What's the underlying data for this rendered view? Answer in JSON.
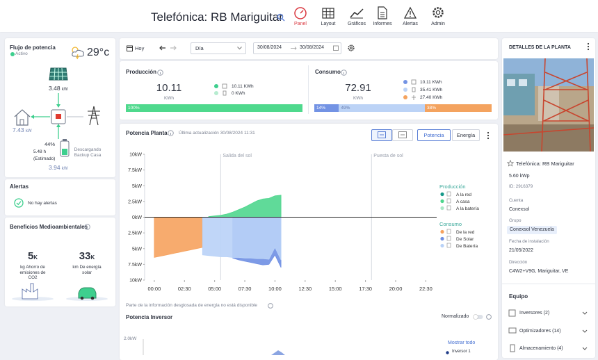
{
  "header": {
    "title": "Telefónica: RB Mariguitar",
    "nav": [
      "Panel",
      "Layout",
      "Gráficos",
      "Informes",
      "Alertas",
      "Admin"
    ]
  },
  "power_flow": {
    "title": "Flujo de potencia",
    "status": "Activo",
    "temperature": "29°c",
    "solar_power": "3.48",
    "solar_unit": "kW",
    "home_power": "7.43",
    "home_unit": "kW",
    "battery_percent": "44%",
    "battery_time": "5.48 h",
    "battery_time_note": "(Estimado)",
    "battery_status": "Descargando Backup Casa",
    "battery_power": "3.94",
    "battery_unit": "kW"
  },
  "alerts": {
    "title": "Alertas",
    "message": "No hay alertas"
  },
  "environment": {
    "title": "Beneficios Medioambientales",
    "items": [
      {
        "value": "5",
        "unit": "K",
        "label": "kg Ahorro de emisiones de CO2"
      },
      {
        "value": "33",
        "unit": "K",
        "label": "km De energía solar"
      }
    ]
  },
  "toolbar": {
    "today": "Hoy",
    "period": "Día",
    "date_from": "30/08/2024",
    "date_to": "30/08/2024"
  },
  "production": {
    "title": "Producción",
    "total": "10.11",
    "unit": "KWh",
    "items": [
      "10.11 KWh",
      "0 KWh"
    ],
    "bar": [
      {
        "value": 100,
        "label": "100%",
        "color": "#4fd98d"
      }
    ]
  },
  "consumption": {
    "title": "Consumo",
    "total": "72.91",
    "unit": "KWh",
    "items": [
      "10.11 KWh",
      "35.41 KWh",
      "27.40 KWh"
    ],
    "bar": [
      {
        "value": 14,
        "label": "14%",
        "color": "#7393e4"
      },
      {
        "value": 49,
        "label": "49%",
        "color": "#bcd3f6"
      },
      {
        "value": 38,
        "label": "38%",
        "color": "#f4a35f"
      }
    ]
  },
  "plant_chart": {
    "title": "Potencia Planta",
    "updated": "Última actualización 30/08/2024 11:31",
    "buttons": [
      "Potencia",
      "Energía"
    ],
    "note": "Parte de la información desglosada de energía no está disponible"
  },
  "chart_data": {
    "type": "area",
    "x": [
      0,
      0.5,
      1,
      1.5,
      2,
      2.5,
      3,
      3.5,
      4,
      4.5,
      5,
      5.5,
      6,
      6.5,
      7,
      7.5,
      8,
      8.5,
      9,
      9.5,
      10,
      10.5
    ],
    "xlim": [
      -0.8,
      23.4
    ],
    "xticks": [
      {
        "value": 0,
        "label": "00:00"
      },
      {
        "value": 2.5,
        "label": "02:30"
      },
      {
        "value": 5,
        "label": "05:00"
      },
      {
        "value": 7.5,
        "label": "07:30"
      },
      {
        "value": 10,
        "label": "10:00"
      },
      {
        "value": 12.5,
        "label": "12:30"
      },
      {
        "value": 15,
        "label": "15:00"
      },
      {
        "value": 17.5,
        "label": "17:30"
      },
      {
        "value": 20,
        "label": "20:00"
      },
      {
        "value": 22.5,
        "label": "22:30"
      }
    ],
    "ylim": [
      -10,
      10
    ],
    "yticks": [
      {
        "value": 10,
        "label": "10kW"
      },
      {
        "value": 7.5,
        "label": "7.5kW"
      },
      {
        "value": 5,
        "label": "5kW"
      },
      {
        "value": 2.5,
        "label": "2.5kW"
      },
      {
        "value": 0,
        "label": "0kW"
      },
      {
        "value": -2.5,
        "label": "2.5kW"
      },
      {
        "value": -5,
        "label": "5kW"
      },
      {
        "value": -7.5,
        "label": "7.5kW"
      },
      {
        "value": -10,
        "label": "10kW"
      }
    ],
    "annotations": [
      {
        "x": 5.5,
        "label": "Salida del sol"
      },
      {
        "x": 18,
        "label": "Puesta de sol"
      }
    ],
    "legend_groups": [
      "Producción",
      "Consumo"
    ],
    "series": [
      {
        "name": "A la red",
        "group": 0,
        "color": "#17998a",
        "values": [
          null,
          null,
          null,
          null,
          null,
          null,
          null,
          null,
          null,
          null,
          null,
          null,
          null,
          null,
          null,
          null,
          null,
          null,
          null,
          null,
          null,
          null
        ]
      },
      {
        "name": "A casa",
        "group": 0,
        "color": "#4fd68e",
        "values": [
          null,
          null,
          null,
          null,
          null,
          null,
          null,
          null,
          null,
          0.1,
          0.2,
          0.3,
          0.5,
          0.8,
          1.2,
          1.6,
          2.1,
          2.6,
          2.9,
          3.0,
          3.4,
          3.5
        ]
      },
      {
        "name": "A la batería",
        "group": 0,
        "color": "#a9e7c6",
        "values": [
          null,
          null,
          null,
          null,
          null,
          null,
          null,
          null,
          null,
          null,
          null,
          null,
          null,
          null,
          null,
          null,
          null,
          null,
          null,
          null,
          null,
          null
        ]
      },
      {
        "name": "De la red",
        "group": 1,
        "color": "#f6a25e",
        "values": [
          -6.4,
          -6.2,
          -6.0,
          -5.8,
          -5.6,
          -5.4,
          -5.2,
          -5.0,
          -4.8,
          null,
          null,
          null,
          null,
          null,
          null,
          null,
          null,
          null,
          null,
          null,
          null,
          null
        ]
      },
      {
        "name": "De Solar",
        "group": 1,
        "color": "#6f8fe3",
        "values": [
          null,
          null,
          null,
          null,
          null,
          null,
          null,
          null,
          null,
          null,
          null,
          null,
          null,
          -6.5,
          -6.8,
          -7.0,
          -7.2,
          -7.4,
          -7.6,
          -7.5,
          -6.0,
          -8.0
        ]
      },
      {
        "name": "De Batería",
        "group": 1,
        "color": "#b9d2f7",
        "values": [
          null,
          null,
          null,
          null,
          null,
          null,
          null,
          null,
          -6.0,
          -6.1,
          -6.2,
          -6.3,
          -6.3,
          -6.4,
          -6.4,
          -6.5,
          -6.5,
          -6.6,
          -6.6,
          -6.7,
          -4.8,
          -6.8
        ]
      }
    ]
  },
  "inverter_chart": {
    "title": "Potencia Inversor",
    "toggle": "Normalizado",
    "axis_label": "2.0kW",
    "show_all": "Mostrar todo",
    "inverter": "Inversor 1"
  },
  "plant_details": {
    "title": "DETALLES DE LA PLANTA",
    "name": "Telefónica: RB Mariguitar",
    "capacity": "5.60 kWp",
    "id": "ID: 2916379",
    "fields": [
      {
        "label": "Cuenta",
        "value": "Conexsol"
      },
      {
        "label": "Grupo",
        "value": "Conexsol Venezuela"
      },
      {
        "label": "Fecha de instalación",
        "value": "21/05/2022"
      },
      {
        "label": "Dirección",
        "value": "C4W2+V9G, Mariguitar, VE"
      }
    ],
    "equipment_title": "Equipo",
    "equipment": [
      "Inversores (2)",
      "Optimizadores (14)",
      "Almacenamiento (4)"
    ]
  }
}
